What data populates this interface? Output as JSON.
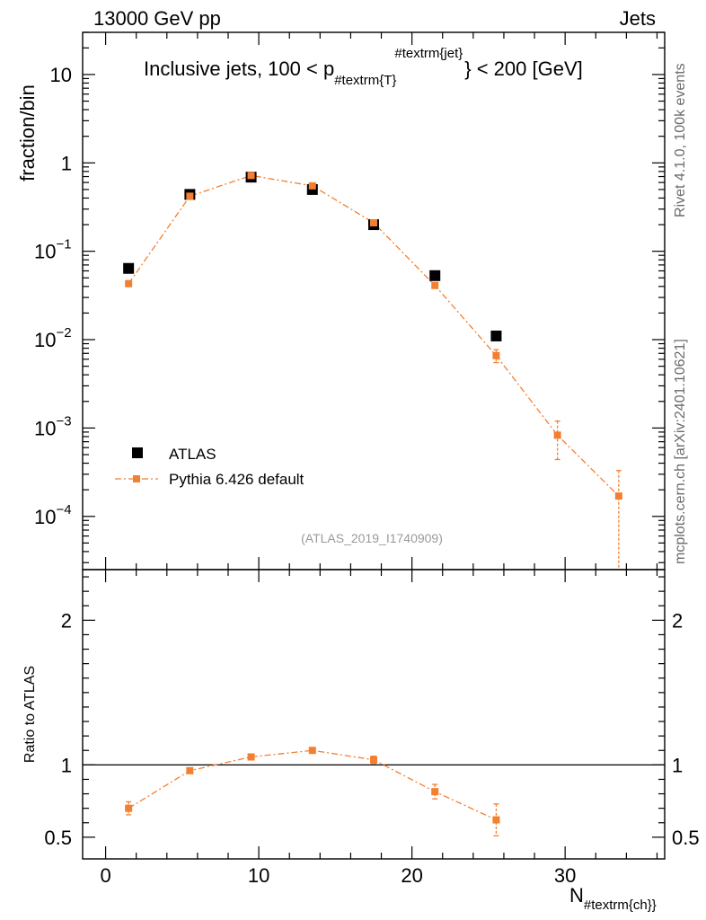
{
  "chart_data": [
    {
      "type": "scatter",
      "title": "Inclusive jets, 100 < p_{#textrm{T}}^{#textrm{jet}} < 200 [GeV]",
      "title_parts": {
        "prefix": "Inclusive jets, 100 < p",
        "sub": "#textrm{T}",
        "sup": "#textrm{jet}",
        "suffix": "} < 200 [GeV]"
      },
      "top_left_label": "13000 GeV pp",
      "top_right_label": "Jets",
      "ylabel": "fraction/bin",
      "yscale": "log",
      "ylim": [
        2.5e-05,
        30
      ],
      "xlim": [
        -1.5,
        36.5
      ],
      "y_tick_labels": {
        "1e1": {
          "base": "10",
          "exp": ""
        },
        "1e0": {
          "base": "1",
          "exp": ""
        },
        "1e-1": {
          "base": "10",
          "exp": "−1"
        },
        "1e-2": {
          "base": "10",
          "exp": "−2"
        },
        "1e-3": {
          "base": "10",
          "exp": "−3"
        },
        "1e-4": {
          "base": "10",
          "exp": "−4"
        }
      },
      "series": [
        {
          "name": "ATLAS",
          "color": "#000000",
          "marker": "square",
          "x": [
            1.5,
            5.5,
            9.5,
            13.5,
            17.5,
            21.5,
            25.5
          ],
          "y": [
            0.064,
            0.44,
            0.69,
            0.5,
            0.2,
            0.053,
            0.011
          ]
        },
        {
          "name": "Pythia 6.426 default",
          "color": "#f37f30",
          "marker": "square",
          "line": "dash-dot",
          "x": [
            1.5,
            5.5,
            9.5,
            13.5,
            17.5,
            21.5,
            25.5,
            29.5,
            33.5
          ],
          "y": [
            0.043,
            0.42,
            0.72,
            0.55,
            0.21,
            0.041,
            0.0066,
            0.00083,
            0.00017
          ],
          "y_err_low": [
            0.002,
            0.01,
            0.015,
            0.012,
            0.006,
            0.002,
            0.0011,
            0.00039,
            0.00015
          ],
          "y_err_high": [
            0.002,
            0.01,
            0.015,
            0.012,
            0.006,
            0.002,
            0.0011,
            0.00037,
            0.00016
          ]
        }
      ],
      "reference_label": "(ATLAS_2019_I1740909)"
    },
    {
      "type": "scatter",
      "ylabel": "Ratio to ATLAS",
      "xlabel": "N_{#textrm{ch}}",
      "xlabel_parts": {
        "main": "N",
        "sub": "#textrm{ch}}"
      },
      "xlim": [
        -1.5,
        36.5
      ],
      "ylim": [
        0.35,
        2.35
      ],
      "y_ticks": [
        0.5,
        1,
        2
      ],
      "y_tick_labels": [
        "0.5",
        "1",
        "2"
      ],
      "x_ticks": [
        0,
        10,
        20,
        30
      ],
      "x_tick_labels": [
        "0",
        "10",
        "20",
        "30"
      ],
      "reference_line": 1,
      "series": [
        {
          "name": "Pythia 6.426 default",
          "color": "#f37f30",
          "x": [
            1.5,
            5.5,
            9.5,
            13.5,
            17.5,
            21.5,
            25.5
          ],
          "y": [
            0.7,
            0.96,
            1.055,
            1.1,
            1.035,
            0.815,
            0.62
          ],
          "y_err": [
            0.045,
            0.012,
            0.018,
            0.015,
            0.025,
            0.05,
            0.11
          ]
        }
      ]
    }
  ],
  "side_labels": {
    "version": "Rivet 4.1.0,  100k events",
    "source": "mcplots.cern.ch [arXiv:2401.10621]"
  }
}
